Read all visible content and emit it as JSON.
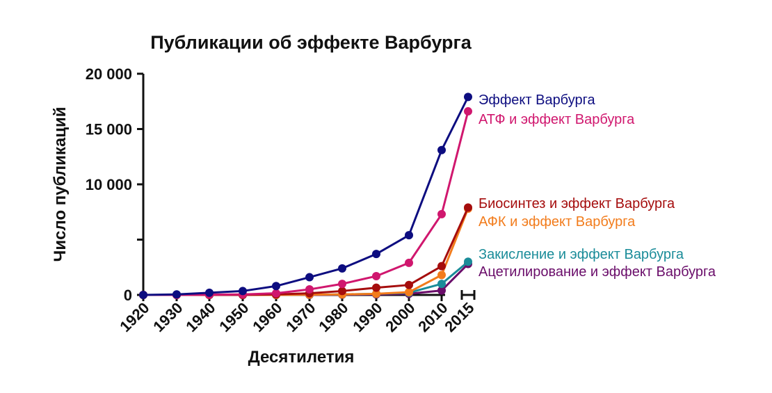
{
  "chart_data": {
    "type": "line",
    "title": "Публикации об эффекте Варбурга",
    "xlabel": "Десятилетия",
    "ylabel": "Число публикаций",
    "x": [
      "1920",
      "1930",
      "1940",
      "1950",
      "1960",
      "1970",
      "1980",
      "1990",
      "2000",
      "2010",
      "2015"
    ],
    "yticks": [
      "0",
      "10 000",
      "15 000",
      "20 000"
    ],
    "ylim": [
      0,
      20000
    ],
    "grid": false,
    "legend": "right, labels at line ends",
    "series": [
      {
        "name": "Эффект Варбурга",
        "color": "#0d0d80",
        "values": [
          0,
          50,
          200,
          350,
          800,
          1600,
          2400,
          3700,
          5400,
          13100,
          17900
        ]
      },
      {
        "name": "АТФ и эффект Варбурга",
        "color": "#d0176e",
        "values": [
          0,
          0,
          20,
          50,
          150,
          500,
          1000,
          1700,
          2900,
          7300,
          16600
        ]
      },
      {
        "name": "Биосинтез и эффект Варбурга",
        "color": "#a50d0d",
        "values": [
          0,
          0,
          0,
          0,
          50,
          150,
          350,
          650,
          900,
          2600,
          7900
        ]
      },
      {
        "name": "АФК и эффект Варбурга",
        "color": "#f27c1c",
        "values": [
          0,
          0,
          0,
          0,
          0,
          20,
          50,
          100,
          250,
          1800,
          7800
        ]
      },
      {
        "name": "Закисление и эффект Варбурга",
        "color": "#1a8c99",
        "values": [
          0,
          0,
          0,
          0,
          0,
          20,
          50,
          100,
          200,
          1000,
          3000
        ]
      },
      {
        "name": "Ацетилирование и эффект Варбурга",
        "color": "#6a0d6a",
        "values": [
          0,
          0,
          0,
          0,
          0,
          0,
          20,
          50,
          100,
          400,
          2800
        ]
      }
    ]
  }
}
